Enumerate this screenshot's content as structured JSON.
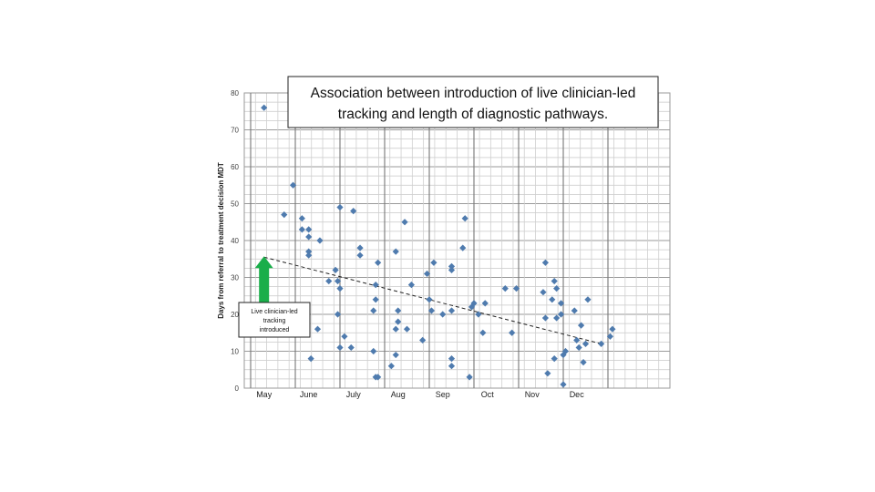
{
  "chart_data": {
    "type": "scatter",
    "title_lines": [
      "Association between introduction of live clinician-led",
      "tracking and length of diagnostic pathways."
    ],
    "ylabel": "Days from referral to treatment decision MDT",
    "xlabel": "",
    "ylim": [
      0,
      80
    ],
    "yticks": [
      0,
      10,
      20,
      30,
      40,
      50,
      60,
      70,
      80
    ],
    "xlim": [
      0,
      9
    ],
    "months": [
      {
        "label": "May",
        "x": 0.3
      },
      {
        "label": "June",
        "x": 1.3
      },
      {
        "label": "July",
        "x": 2.3
      },
      {
        "label": "Aug",
        "x": 3.3
      },
      {
        "label": "Sep",
        "x": 4.3
      },
      {
        "label": "Oct",
        "x": 5.3
      },
      {
        "label": "Nov",
        "x": 6.3
      },
      {
        "label": "Dec",
        "x": 7.3
      }
    ],
    "month_separators": [
      0.0,
      1.0,
      2.0,
      3.0,
      4.0,
      5.0,
      6.0,
      7.0,
      8.0
    ],
    "grid": true,
    "legend": "none",
    "point_color": "#4F7BAE",
    "arrow_color": "#1AAE4A",
    "trendline": {
      "x": [
        0.3,
        7.85
      ],
      "y": [
        35.5,
        12
      ],
      "style": "dashed"
    },
    "annotation": {
      "lines": [
        "Live clinician-led",
        "tracking",
        "introduced"
      ],
      "x": 0.3
    },
    "points": [
      [
        0.3,
        76
      ],
      [
        0.75,
        47
      ],
      [
        0.95,
        55
      ],
      [
        1.15,
        46
      ],
      [
        1.15,
        43
      ],
      [
        1.3,
        41
      ],
      [
        1.3,
        43
      ],
      [
        1.3,
        37
      ],
      [
        1.3,
        36
      ],
      [
        1.55,
        40
      ],
      [
        1.35,
        8
      ],
      [
        1.5,
        16
      ],
      [
        1.75,
        29
      ],
      [
        1.9,
        32
      ],
      [
        1.95,
        29
      ],
      [
        2.0,
        27
      ],
      [
        1.95,
        20
      ],
      [
        2.0,
        11
      ],
      [
        2.1,
        14
      ],
      [
        2.25,
        11
      ],
      [
        2.0,
        49
      ],
      [
        2.3,
        48
      ],
      [
        2.45,
        38
      ],
      [
        2.45,
        36
      ],
      [
        2.75,
        10
      ],
      [
        2.75,
        21
      ],
      [
        2.8,
        24
      ],
      [
        2.8,
        28
      ],
      [
        2.85,
        34
      ],
      [
        2.8,
        3
      ],
      [
        2.85,
        3
      ],
      [
        3.15,
        6
      ],
      [
        3.25,
        9
      ],
      [
        3.25,
        16
      ],
      [
        3.3,
        18
      ],
      [
        3.3,
        21
      ],
      [
        3.25,
        37
      ],
      [
        3.45,
        45
      ],
      [
        3.5,
        16
      ],
      [
        3.6,
        28
      ],
      [
        3.85,
        13
      ],
      [
        3.95,
        31
      ],
      [
        4.0,
        24
      ],
      [
        4.05,
        21
      ],
      [
        4.1,
        34
      ],
      [
        4.3,
        20
      ],
      [
        4.5,
        21
      ],
      [
        4.5,
        33
      ],
      [
        4.5,
        32
      ],
      [
        4.5,
        8
      ],
      [
        4.5,
        6
      ],
      [
        4.75,
        38
      ],
      [
        4.8,
        46
      ],
      [
        4.9,
        3
      ],
      [
        4.95,
        22
      ],
      [
        5.0,
        23
      ],
      [
        5.1,
        20
      ],
      [
        5.2,
        15
      ],
      [
        5.25,
        23
      ],
      [
        5.7,
        27
      ],
      [
        5.85,
        15
      ],
      [
        5.95,
        27
      ],
      [
        6.65,
        4
      ],
      [
        6.6,
        19
      ],
      [
        6.55,
        26
      ],
      [
        6.6,
        34
      ],
      [
        6.75,
        24
      ],
      [
        6.8,
        29
      ],
      [
        6.85,
        27
      ],
      [
        6.85,
        19
      ],
      [
        6.8,
        8
      ],
      [
        6.95,
        23
      ],
      [
        6.95,
        20
      ],
      [
        7.0,
        9
      ],
      [
        7.05,
        10
      ],
      [
        7.0,
        1
      ],
      [
        7.25,
        21
      ],
      [
        7.3,
        13
      ],
      [
        7.35,
        11
      ],
      [
        7.4,
        17
      ],
      [
        7.45,
        7
      ],
      [
        7.5,
        12
      ],
      [
        7.55,
        24
      ],
      [
        7.85,
        12
      ],
      [
        8.05,
        14
      ],
      [
        8.1,
        16
      ]
    ]
  }
}
